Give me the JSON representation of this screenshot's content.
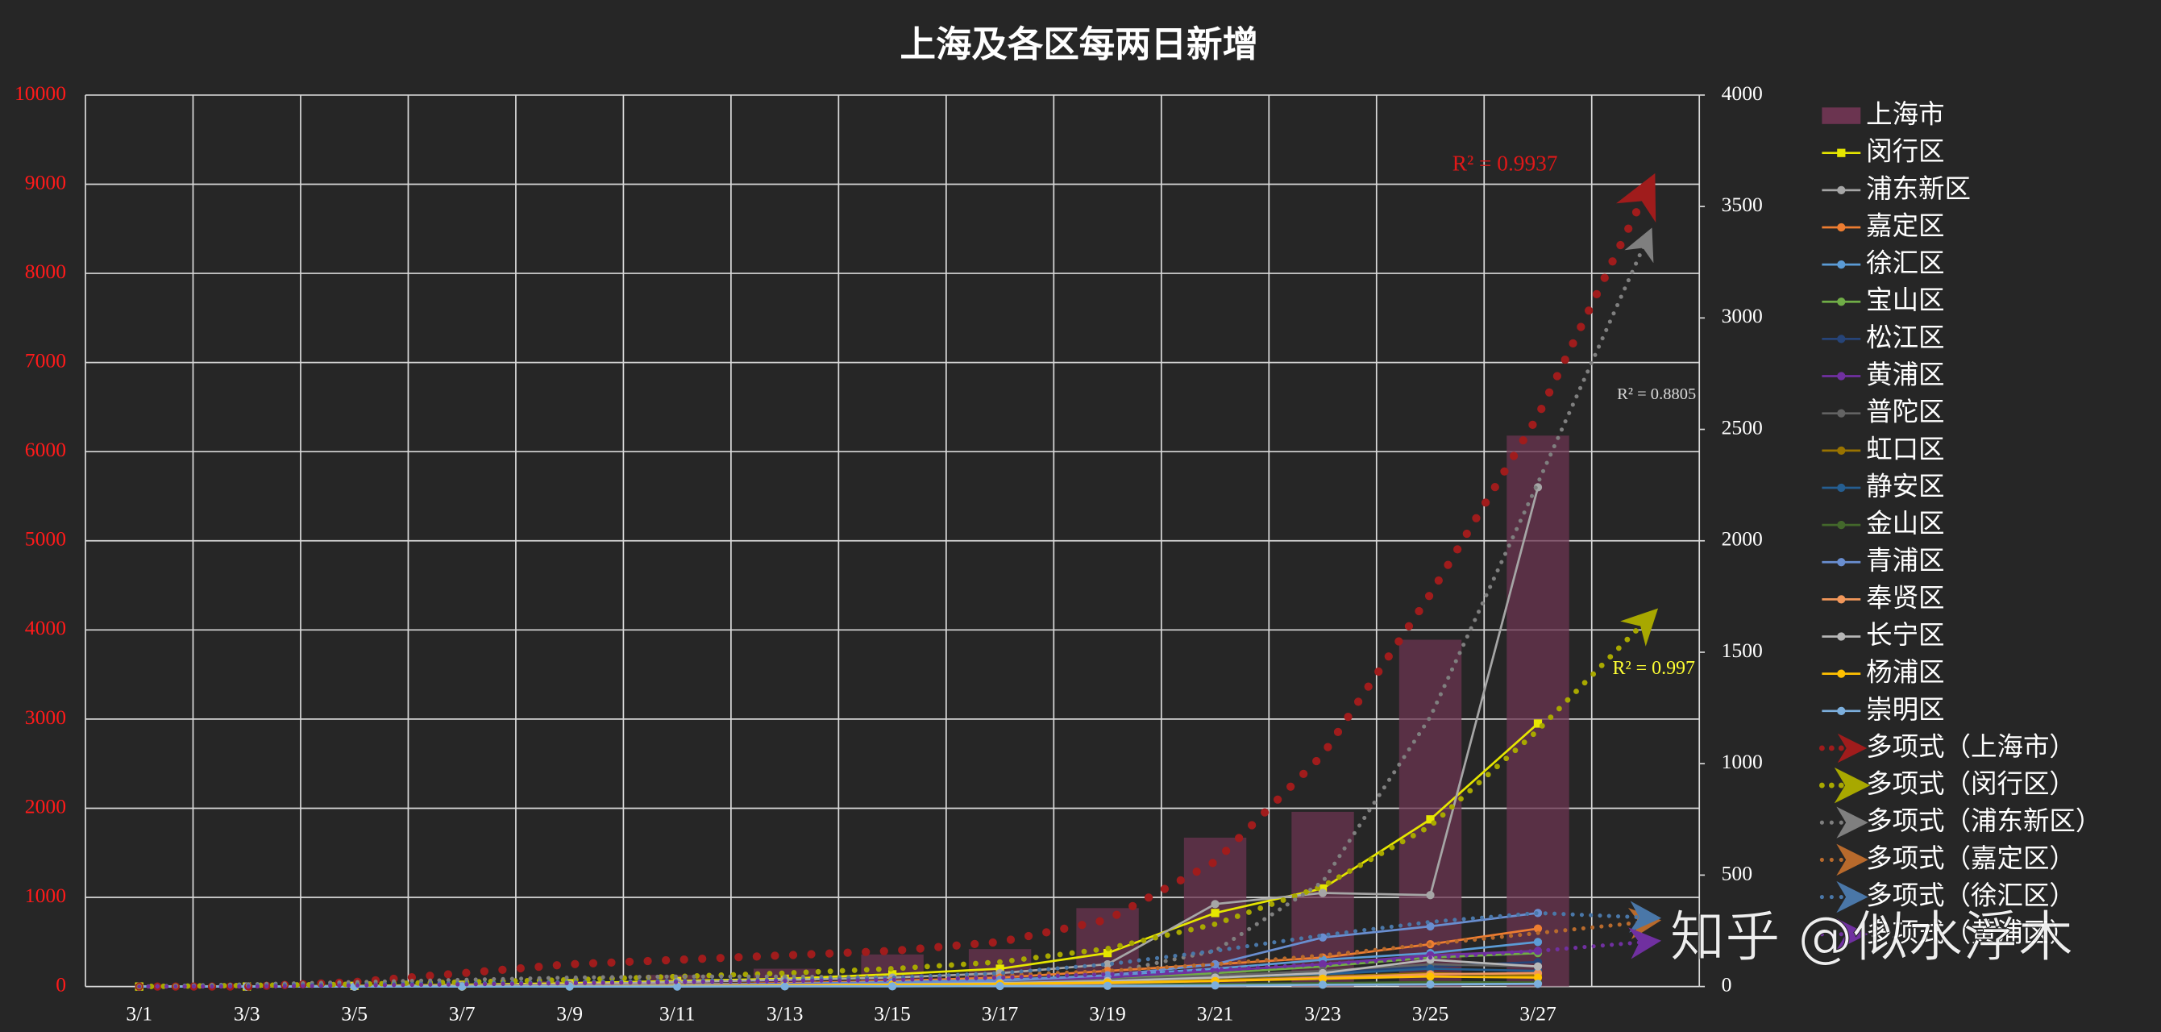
{
  "chart_data": {
    "type": "combo",
    "title": "上海及各区每两日新增",
    "categories": [
      "3/1",
      "3/3",
      "3/5",
      "3/7",
      "3/9",
      "3/11",
      "3/13",
      "3/15",
      "3/17",
      "3/19",
      "3/21",
      "3/23",
      "3/25",
      "3/27",
      null
    ],
    "ylim": [
      0,
      10000
    ],
    "yticks": [
      0,
      1000,
      2000,
      3000,
      4000,
      5000,
      6000,
      7000,
      8000,
      9000,
      10000
    ],
    "y2lim": [
      0,
      4000
    ],
    "y2ticks": [
      0,
      500,
      1000,
      1500,
      2000,
      2500,
      3000,
      3500,
      4000
    ],
    "grid": true,
    "legend": "right",
    "series": [
      {
        "name": "上海市",
        "type": "bar",
        "color": "#6b3450",
        "values": [
          0,
          0,
          10,
          20,
          60,
          130,
          200,
          360,
          420,
          880,
          1670,
          1960,
          3890,
          6180,
          null
        ]
      },
      {
        "name": "闵行区",
        "type": "line",
        "axis": "y2",
        "marker": "square",
        "color": "#e6e600",
        "values": [
          0,
          0,
          3,
          8,
          15,
          25,
          35,
          55,
          80,
          150,
          330,
          440,
          750,
          1180,
          null
        ]
      },
      {
        "name": "浦东新区",
        "type": "line",
        "axis": "y2",
        "color": "#a6a6a6",
        "values": [
          0,
          0,
          2,
          5,
          10,
          20,
          30,
          40,
          60,
          100,
          370,
          420,
          410,
          2240,
          null
        ]
      },
      {
        "name": "嘉定区",
        "type": "line",
        "axis": "y2",
        "color": "#ed7d31",
        "values": [
          0,
          0,
          1,
          3,
          6,
          10,
          15,
          25,
          40,
          70,
          100,
          130,
          190,
          260,
          null
        ]
      },
      {
        "name": "徐汇区",
        "type": "line",
        "axis": "y2",
        "color": "#5b9bd5",
        "values": [
          0,
          0,
          1,
          2,
          4,
          8,
          12,
          20,
          30,
          50,
          80,
          120,
          150,
          200,
          null
        ]
      },
      {
        "name": "宝山区",
        "type": "line",
        "axis": "y2",
        "color": "#70ad47",
        "values": [
          0,
          0,
          0,
          1,
          3,
          5,
          8,
          12,
          20,
          35,
          60,
          90,
          130,
          150,
          null
        ]
      },
      {
        "name": "松江区",
        "type": "line",
        "axis": "y2",
        "color": "#264478",
        "values": [
          0,
          0,
          0,
          1,
          2,
          4,
          6,
          10,
          15,
          25,
          40,
          60,
          90,
          110,
          null
        ]
      },
      {
        "name": "黄浦区",
        "type": "line",
        "axis": "y2",
        "color": "#7030a0",
        "values": [
          0,
          0,
          0,
          1,
          3,
          6,
          10,
          15,
          25,
          40,
          70,
          100,
          140,
          160,
          null
        ]
      },
      {
        "name": "普陀区",
        "type": "line",
        "axis": "y2",
        "color": "#636363",
        "values": [
          0,
          0,
          0,
          1,
          2,
          5,
          8,
          12,
          18,
          30,
          50,
          70,
          100,
          90,
          null
        ]
      },
      {
        "name": "虹口区",
        "type": "line",
        "axis": "y2",
        "color": "#997300",
        "values": [
          0,
          0,
          0,
          0,
          1,
          3,
          5,
          8,
          12,
          20,
          30,
          45,
          60,
          50,
          null
        ]
      },
      {
        "name": "静安区",
        "type": "line",
        "axis": "y2",
        "color": "#255e91",
        "values": [
          0,
          0,
          0,
          1,
          2,
          4,
          6,
          10,
          15,
          25,
          40,
          55,
          80,
          70,
          null
        ]
      },
      {
        "name": "金山区",
        "type": "line",
        "axis": "y2",
        "color": "#43682b",
        "values": [
          0,
          0,
          0,
          0,
          0,
          1,
          2,
          3,
          5,
          8,
          12,
          15,
          20,
          18,
          null
        ]
      },
      {
        "name": "青浦区",
        "type": "line",
        "axis": "y2",
        "color": "#698ed0",
        "values": [
          0,
          0,
          0,
          1,
          2,
          5,
          8,
          15,
          25,
          50,
          100,
          220,
          270,
          330,
          null
        ]
      },
      {
        "name": "奉贤区",
        "type": "line",
        "axis": "y2",
        "color": "#f1975a",
        "values": [
          0,
          0,
          0,
          0,
          1,
          2,
          4,
          6,
          10,
          15,
          25,
          40,
          55,
          60,
          null
        ]
      },
      {
        "name": "长宁区",
        "type": "line",
        "axis": "y2",
        "color": "#b7b7b7",
        "values": [
          0,
          0,
          0,
          1,
          2,
          4,
          7,
          10,
          15,
          25,
          40,
          60,
          120,
          90,
          null
        ]
      },
      {
        "name": "杨浦区",
        "type": "line",
        "axis": "y2",
        "color": "#ffc000",
        "values": [
          0,
          0,
          0,
          0,
          1,
          3,
          5,
          8,
          12,
          18,
          25,
          35,
          45,
          40,
          null
        ]
      },
      {
        "name": "崇明区",
        "type": "line",
        "axis": "y2",
        "color": "#7cafdd",
        "values": [
          0,
          0,
          0,
          0,
          0,
          0,
          1,
          1,
          2,
          3,
          5,
          8,
          10,
          12,
          null
        ]
      }
    ],
    "trendlines": [
      {
        "name": "多项式（上海市）",
        "color": "#a01c1c",
        "width": 6,
        "label": "R² = 0.9937",
        "values": [
          0,
          0,
          50,
          150,
          250,
          300,
          350,
          400,
          500,
          750,
          1400,
          2600,
          4400,
          6400,
          8900
        ]
      },
      {
        "name": "多项式（闵行区）",
        "axis": "y2",
        "color": "#a8a800",
        "width": 4,
        "label": "R² = 0.997",
        "values": [
          0,
          5,
          10,
          20,
          30,
          45,
          60,
          80,
          110,
          170,
          280,
          450,
          720,
          1150,
          1640
        ]
      },
      {
        "name": "多项式（浦东新区）",
        "axis": "y2",
        "color": "#7f7f7f",
        "width": 3,
        "label": "R² = 0.8805",
        "values": [
          0,
          10,
          20,
          30,
          40,
          45,
          45,
          40,
          40,
          60,
          160,
          470,
          1210,
          2260,
          3340
        ]
      },
      {
        "name": "多项式（嘉定区）",
        "axis": "y2",
        "color": "#b86a2c",
        "width": 3,
        "values": [
          0,
          0,
          5,
          10,
          15,
          20,
          30,
          40,
          50,
          70,
          100,
          140,
          190,
          240,
          290
        ]
      },
      {
        "name": "多项式（徐汇区）",
        "axis": "y2",
        "color": "#4a77a8",
        "width": 3,
        "values": [
          0,
          5,
          10,
          15,
          20,
          25,
          30,
          40,
          60,
          100,
          160,
          230,
          290,
          330,
          310
        ]
      },
      {
        "name": "多项式（黄浦区）",
        "axis": "y2",
        "color": "#7030a0",
        "width": 3,
        "values": [
          0,
          0,
          5,
          10,
          15,
          20,
          25,
          30,
          40,
          55,
          75,
          100,
          130,
          160,
          200
        ]
      }
    ],
    "watermark": "知乎 @似水浮木"
  }
}
